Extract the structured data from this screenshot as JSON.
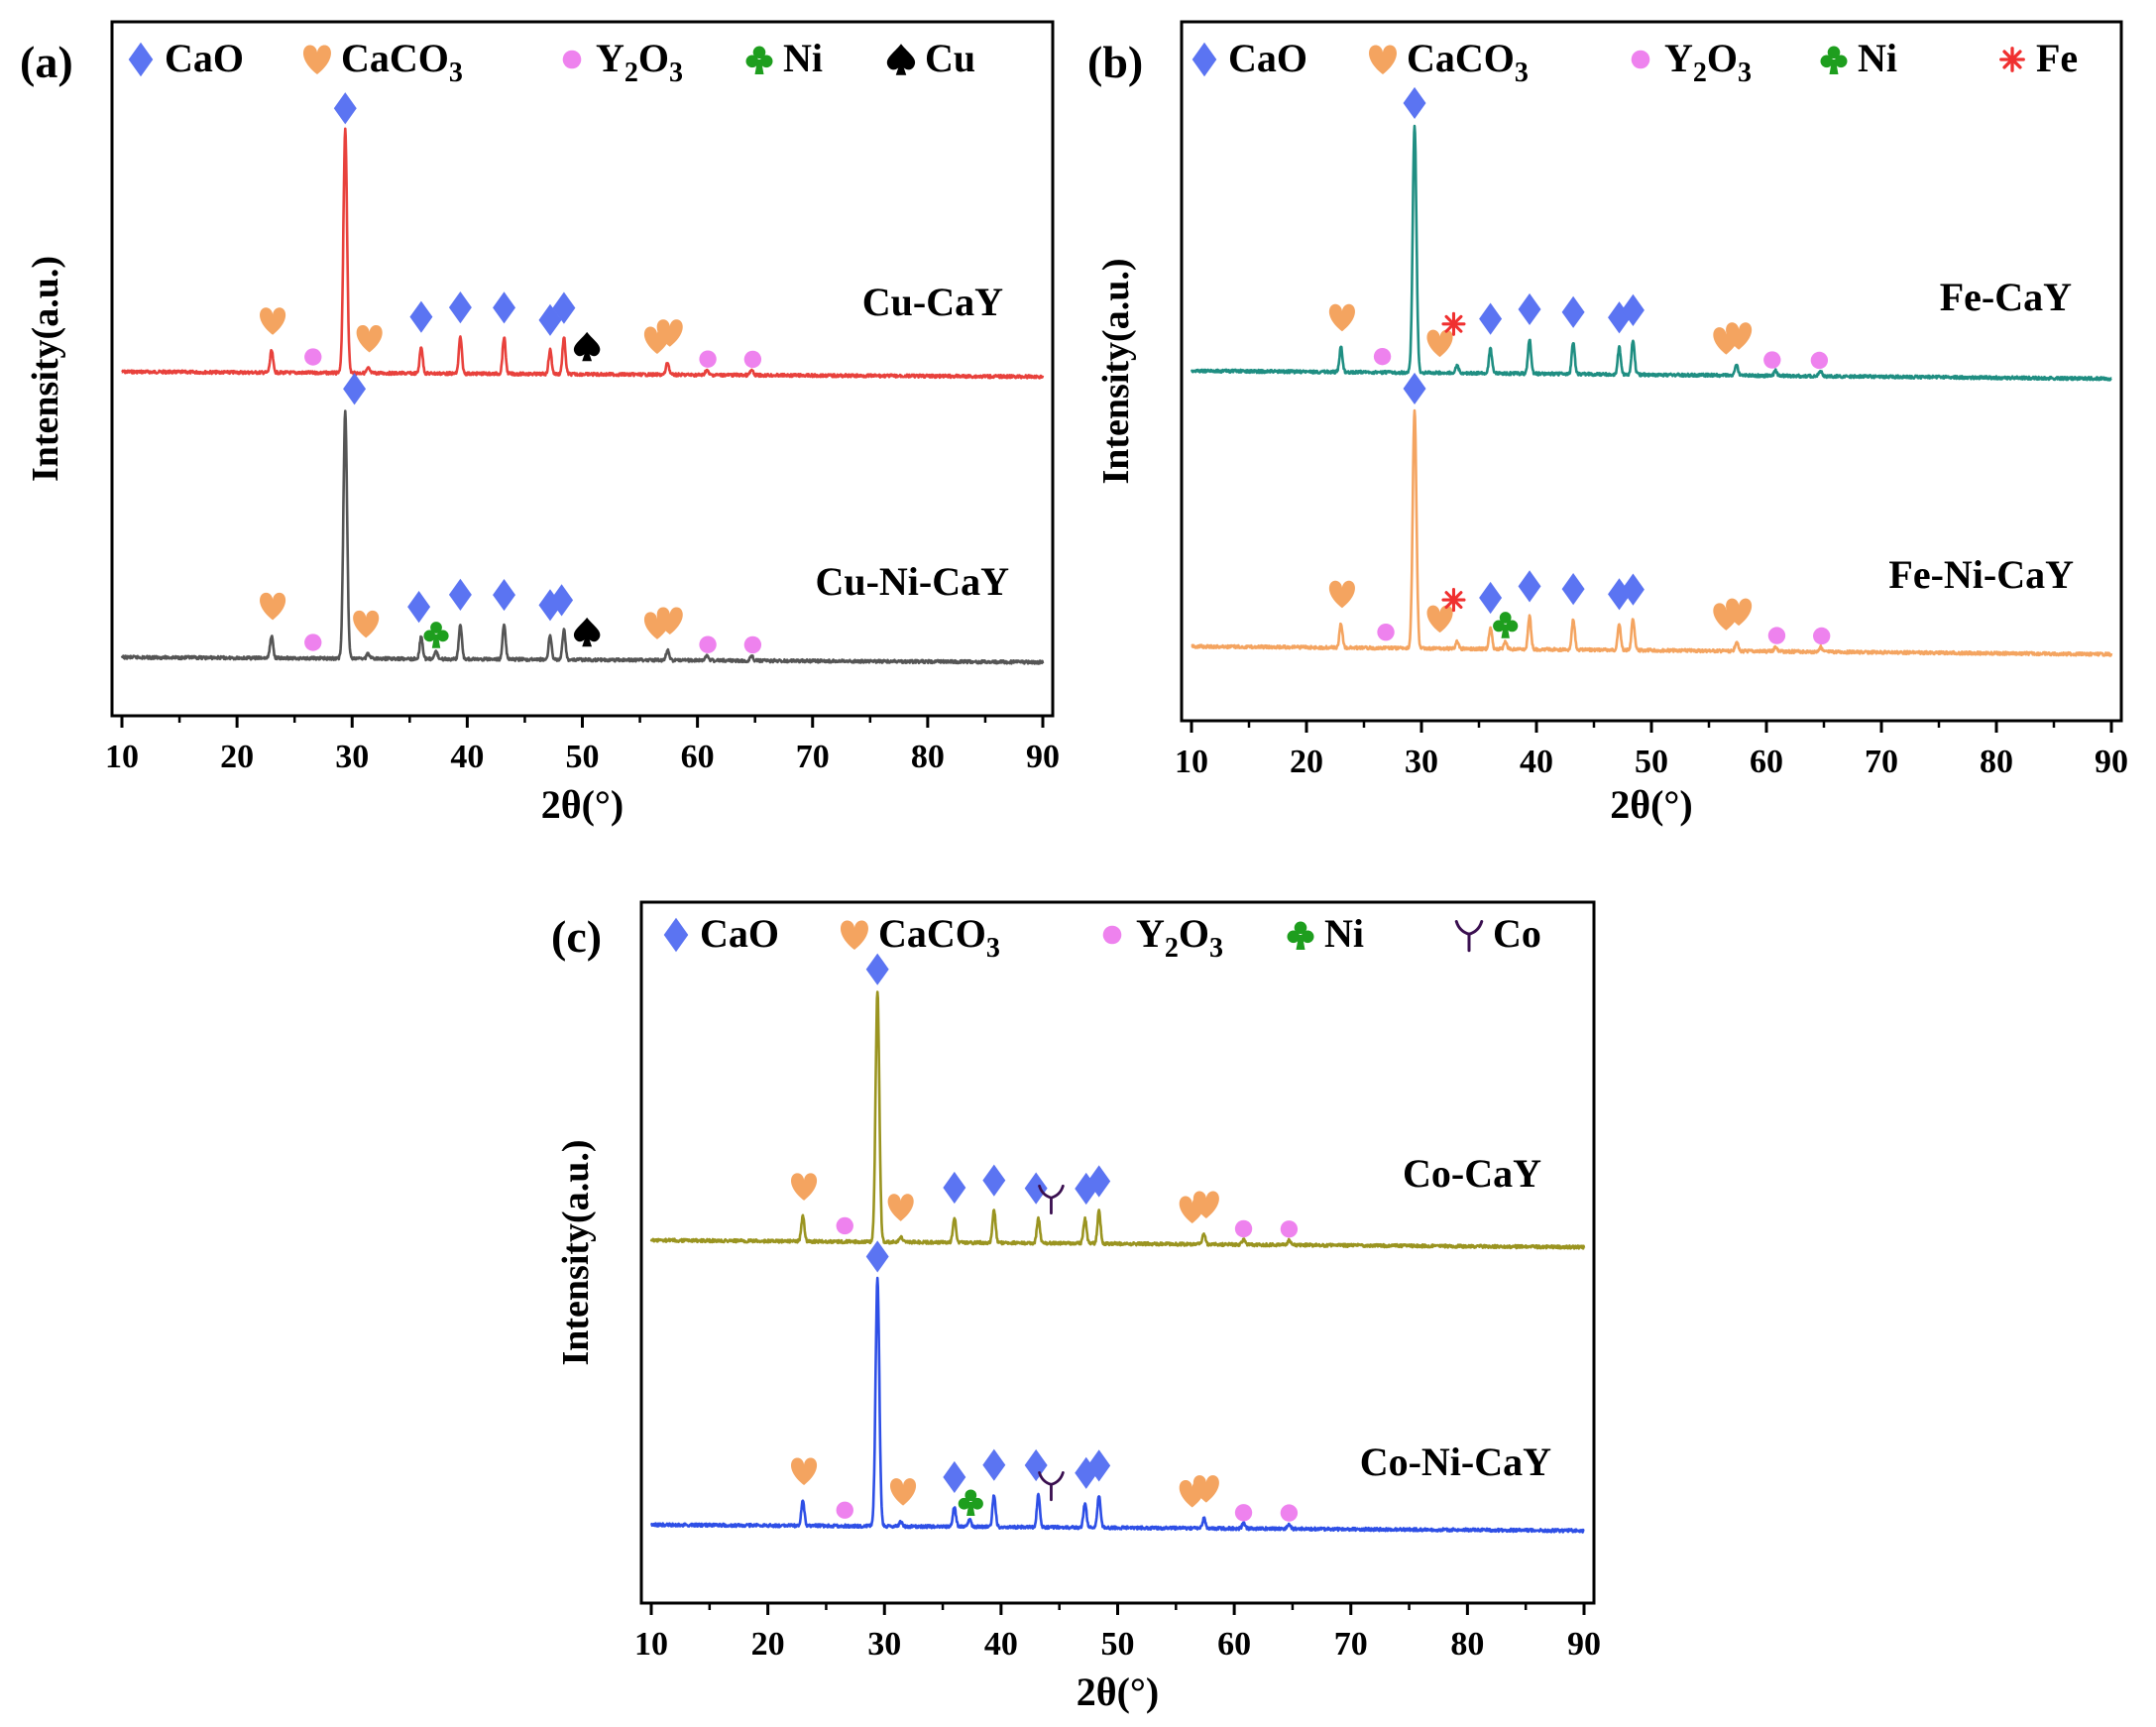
{
  "marker_legend": {
    "CaO": {
      "symbol": "diamond",
      "color": "#5B74F2"
    },
    "CaCO3": {
      "symbol": "heart",
      "color": "#F4A460"
    },
    "Y2O3": {
      "symbol": "dot",
      "color": "#EE82EE"
    },
    "Ni": {
      "symbol": "club",
      "color": "#1E9E1E"
    },
    "Cu": {
      "symbol": "spade",
      "color": "#000000"
    },
    "Fe": {
      "symbol": "asterisk",
      "color": "#F03030"
    },
    "Co": {
      "symbol": "gamma",
      "color": "#3A0F50"
    }
  },
  "chart_data": [
    {
      "type": "line",
      "panel_label": "(a)",
      "xlabel": "2θ(°)",
      "ylabel": "Intensity(a.u.)",
      "xlim": [
        10,
        90
      ],
      "xticks": [
        10,
        20,
        30,
        40,
        50,
        60,
        70,
        80,
        90
      ],
      "xtick_labels": [
        "10",
        "20",
        "30",
        "40",
        "50",
        "60",
        "70",
        "80",
        "90"
      ],
      "legend": [
        {
          "text": "CaO",
          "sub": "",
          "marker": "CaO"
        },
        {
          "text": "CaCO",
          "sub": "3",
          "marker": "CaCO3"
        },
        {
          "text": "Y",
          "sub": "2",
          "text2": "O",
          "sub2": "3",
          "marker": "Y2O3"
        },
        {
          "text": "Ni",
          "sub": "",
          "marker": "Ni"
        },
        {
          "text": "Cu",
          "sub": "",
          "marker": "Cu"
        }
      ],
      "series": [
        {
          "name": "Cu-CaY",
          "color": "#E8413C",
          "peaks": [
            [
              23.0,
              0.09
            ],
            [
              29.4,
              1.0
            ],
            [
              31.4,
              0.02
            ],
            [
              36.0,
              0.11
            ],
            [
              39.4,
              0.15
            ],
            [
              43.2,
              0.15
            ],
            [
              47.2,
              0.1
            ],
            [
              48.4,
              0.15
            ],
            [
              57.4,
              0.05
            ],
            [
              60.8,
              0.02
            ],
            [
              64.7,
              0.02
            ]
          ],
          "markers": [
            {
              "type": "CaCO3",
              "x": 23.1,
              "peak": 0.09
            },
            {
              "type": "Y2O3",
              "x": 26.6,
              "peak": 0.0
            },
            {
              "type": "CaO",
              "x": 29.4,
              "peak": 1.0
            },
            {
              "type": "CaCO3",
              "x": 31.5,
              "peak": 0.02
            },
            {
              "type": "CaO",
              "x": 36.0,
              "peak": 0.11
            },
            {
              "type": "CaO",
              "x": 39.4,
              "peak": 0.15
            },
            {
              "type": "CaO",
              "x": 43.2,
              "peak": 0.15
            },
            {
              "type": "CaO",
              "x": 47.2,
              "peak": 0.1
            },
            {
              "type": "CaO",
              "x": 48.4,
              "peak": 0.15
            },
            {
              "type": "Cu",
              "x": 50.4,
              "peak": 0.0
            },
            {
              "type": "CaCO3",
              "x": 56.5,
              "peak": 0.02
            },
            {
              "type": "CaCO3",
              "x": 57.6,
              "peak": 0.05
            },
            {
              "type": "Y2O3",
              "x": 60.9,
              "peak": 0.02
            },
            {
              "type": "Y2O3",
              "x": 64.8,
              "peak": 0.02
            }
          ]
        },
        {
          "name": "Cu-Ni-CaY",
          "color": "#555555",
          "peaks": [
            [
              23.0,
              0.09
            ],
            [
              29.4,
              1.0
            ],
            [
              31.4,
              0.02
            ],
            [
              36.0,
              0.09
            ],
            [
              37.3,
              0.03
            ],
            [
              39.4,
              0.14
            ],
            [
              43.2,
              0.14
            ],
            [
              47.2,
              0.1
            ],
            [
              48.4,
              0.12
            ],
            [
              57.4,
              0.04
            ],
            [
              60.8,
              0.02
            ],
            [
              64.7,
              0.02
            ]
          ],
          "markers": [
            {
              "type": "CaCO3",
              "x": 23.1,
              "peak": 0.09
            },
            {
              "type": "Y2O3",
              "x": 26.6,
              "peak": 0.0
            },
            {
              "type": "CaO",
              "x": 30.2,
              "peak": 1.0
            },
            {
              "type": "CaCO3",
              "x": 31.2,
              "peak": 0.02
            },
            {
              "type": "CaO",
              "x": 35.8,
              "peak": 0.09
            },
            {
              "type": "Ni",
              "x": 37.3,
              "peak": 0.03
            },
            {
              "type": "CaO",
              "x": 39.4,
              "peak": 0.14
            },
            {
              "type": "CaO",
              "x": 43.2,
              "peak": 0.14
            },
            {
              "type": "CaO",
              "x": 47.2,
              "peak": 0.1
            },
            {
              "type": "CaO",
              "x": 48.2,
              "peak": 0.12
            },
            {
              "type": "Cu",
              "x": 50.4,
              "peak": 0.0
            },
            {
              "type": "CaCO3",
              "x": 56.5,
              "peak": 0.02
            },
            {
              "type": "CaCO3",
              "x": 57.6,
              "peak": 0.04
            },
            {
              "type": "Y2O3",
              "x": 60.9,
              "peak": 0.02
            },
            {
              "type": "Y2O3",
              "x": 64.8,
              "peak": 0.02
            }
          ]
        }
      ]
    },
    {
      "type": "line",
      "panel_label": "(b)",
      "xlabel": "2θ(°)",
      "ylabel": "Intensity(a.u.)",
      "xlim": [
        10,
        90
      ],
      "xticks": [
        10,
        20,
        30,
        40,
        50,
        60,
        70,
        80,
        90
      ],
      "xtick_labels": [
        "10",
        "20",
        "30",
        "40",
        "50",
        "60",
        "70",
        "80",
        "90"
      ],
      "legend": [
        {
          "text": "CaO",
          "sub": "",
          "marker": "CaO"
        },
        {
          "text": "CaCO",
          "sub": "3",
          "marker": "CaCO3"
        },
        {
          "text": "Y",
          "sub": "2",
          "text2": "O",
          "sub2": "3",
          "marker": "Y2O3"
        },
        {
          "text": "Ni",
          "sub": "",
          "marker": "Ni"
        },
        {
          "text": "Fe",
          "sub": "",
          "marker": "Fe"
        }
      ],
      "series": [
        {
          "name": "Fe-CaY",
          "color": "#1F8E82",
          "peaks": [
            [
              23.0,
              0.1
            ],
            [
              29.4,
              1.0
            ],
            [
              33.1,
              0.03
            ],
            [
              36.0,
              0.1
            ],
            [
              39.4,
              0.14
            ],
            [
              43.2,
              0.13
            ],
            [
              47.2,
              0.11
            ],
            [
              48.4,
              0.14
            ],
            [
              57.4,
              0.04
            ],
            [
              60.8,
              0.02
            ],
            [
              64.7,
              0.02
            ]
          ],
          "markers": [
            {
              "type": "CaCO3",
              "x": 23.1,
              "peak": 0.1
            },
            {
              "type": "Y2O3",
              "x": 26.6,
              "peak": 0.0
            },
            {
              "type": "CaO",
              "x": 29.4,
              "peak": 1.0
            },
            {
              "type": "CaCO3",
              "x": 31.6,
              "peak": 0.0
            },
            {
              "type": "Fe",
              "x": 32.8,
              "peak": 0.03
            },
            {
              "type": "CaO",
              "x": 36.0,
              "peak": 0.1
            },
            {
              "type": "CaO",
              "x": 39.4,
              "peak": 0.14
            },
            {
              "type": "CaO",
              "x": 43.2,
              "peak": 0.13
            },
            {
              "type": "CaO",
              "x": 47.2,
              "peak": 0.11
            },
            {
              "type": "CaO",
              "x": 48.4,
              "peak": 0.14
            },
            {
              "type": "CaCO3",
              "x": 56.5,
              "peak": 0.02
            },
            {
              "type": "CaCO3",
              "x": 57.6,
              "peak": 0.04
            },
            {
              "type": "Y2O3",
              "x": 60.5,
              "peak": 0.02
            },
            {
              "type": "Y2O3",
              "x": 64.6,
              "peak": 0.02
            }
          ]
        },
        {
          "name": "Fe-Ni-CaY",
          "color": "#F4A460",
          "peaks": [
            [
              23.0,
              0.1
            ],
            [
              29.4,
              1.0
            ],
            [
              33.1,
              0.03
            ],
            [
              36.0,
              0.09
            ],
            [
              37.3,
              0.03
            ],
            [
              39.4,
              0.14
            ],
            [
              43.2,
              0.13
            ],
            [
              47.2,
              0.11
            ],
            [
              48.4,
              0.13
            ],
            [
              57.4,
              0.04
            ],
            [
              60.8,
              0.02
            ],
            [
              64.7,
              0.02
            ]
          ],
          "markers": [
            {
              "type": "CaCO3",
              "x": 23.1,
              "peak": 0.1
            },
            {
              "type": "Y2O3",
              "x": 26.9,
              "peak": 0.0
            },
            {
              "type": "CaO",
              "x": 29.4,
              "peak": 1.0
            },
            {
              "type": "CaCO3",
              "x": 31.6,
              "peak": 0.0
            },
            {
              "type": "Fe",
              "x": 32.8,
              "peak": 0.03
            },
            {
              "type": "CaO",
              "x": 36.0,
              "peak": 0.09
            },
            {
              "type": "Ni",
              "x": 37.3,
              "peak": 0.03
            },
            {
              "type": "CaO",
              "x": 39.4,
              "peak": 0.14
            },
            {
              "type": "CaO",
              "x": 43.2,
              "peak": 0.13
            },
            {
              "type": "CaO",
              "x": 47.2,
              "peak": 0.11
            },
            {
              "type": "CaO",
              "x": 48.4,
              "peak": 0.13
            },
            {
              "type": "CaCO3",
              "x": 56.5,
              "peak": 0.02
            },
            {
              "type": "CaCO3",
              "x": 57.6,
              "peak": 0.04
            },
            {
              "type": "Y2O3",
              "x": 60.9,
              "peak": 0.02
            },
            {
              "type": "Y2O3",
              "x": 64.8,
              "peak": 0.02
            }
          ]
        }
      ]
    },
    {
      "type": "line",
      "panel_label": "(c)",
      "xlabel": "2θ(°)",
      "ylabel": "Intensity(a.u.)",
      "xlim": [
        10,
        90
      ],
      "xticks": [
        10,
        20,
        30,
        40,
        50,
        60,
        70,
        80,
        90
      ],
      "xtick_labels": [
        "10",
        "20",
        "30",
        "40",
        "50",
        "60",
        "70",
        "80",
        "90"
      ],
      "legend": [
        {
          "text": "CaO",
          "sub": "",
          "marker": "CaO"
        },
        {
          "text": "CaCO",
          "sub": "3",
          "marker": "CaCO3"
        },
        {
          "text": "Y",
          "sub": "2",
          "text2": "O",
          "sub2": "3",
          "marker": "Y2O3"
        },
        {
          "text": "Ni",
          "sub": "",
          "marker": "Ni"
        },
        {
          "text": "Co",
          "sub": "",
          "marker": "Co"
        }
      ],
      "series": [
        {
          "name": "Co-CaY",
          "color": "#9A9420",
          "peaks": [
            [
              23.0,
              0.1
            ],
            [
              29.4,
              1.0
            ],
            [
              31.4,
              0.02
            ],
            [
              36.0,
              0.1
            ],
            [
              39.4,
              0.13
            ],
            [
              43.2,
              0.1
            ],
            [
              47.2,
              0.1
            ],
            [
              48.4,
              0.13
            ],
            [
              57.4,
              0.04
            ],
            [
              60.8,
              0.02
            ],
            [
              64.7,
              0.02
            ]
          ],
          "markers": [
            {
              "type": "CaCO3",
              "x": 23.1,
              "peak": 0.1
            },
            {
              "type": "Y2O3",
              "x": 26.6,
              "peak": 0.0
            },
            {
              "type": "CaO",
              "x": 29.4,
              "peak": 1.0
            },
            {
              "type": "CaCO3",
              "x": 31.4,
              "peak": 0.02
            },
            {
              "type": "CaO",
              "x": 36.0,
              "peak": 0.1
            },
            {
              "type": "CaO",
              "x": 39.4,
              "peak": 0.13
            },
            {
              "type": "CaO",
              "x": 43.0,
              "peak": 0.1
            },
            {
              "type": "Co",
              "x": 44.3,
              "peak": 0.04
            },
            {
              "type": "CaO",
              "x": 47.3,
              "peak": 0.1
            },
            {
              "type": "CaO",
              "x": 48.4,
              "peak": 0.13
            },
            {
              "type": "CaCO3",
              "x": 56.4,
              "peak": 0.02
            },
            {
              "type": "CaCO3",
              "x": 57.6,
              "peak": 0.04
            },
            {
              "type": "Y2O3",
              "x": 60.8,
              "peak": 0.02
            },
            {
              "type": "Y2O3",
              "x": 64.7,
              "peak": 0.02
            }
          ]
        },
        {
          "name": "Co-Ni-CaY",
          "color": "#2E4FE6",
          "peaks": [
            [
              23.0,
              0.1
            ],
            [
              29.4,
              1.0
            ],
            [
              31.4,
              0.02
            ],
            [
              36.0,
              0.08
            ],
            [
              37.3,
              0.03
            ],
            [
              39.4,
              0.13
            ],
            [
              43.2,
              0.13
            ],
            [
              47.2,
              0.1
            ],
            [
              48.4,
              0.13
            ],
            [
              57.4,
              0.04
            ],
            [
              60.8,
              0.02
            ],
            [
              64.7,
              0.02
            ]
          ],
          "markers": [
            {
              "type": "CaCO3",
              "x": 23.1,
              "peak": 0.1
            },
            {
              "type": "Y2O3",
              "x": 26.6,
              "peak": 0.0
            },
            {
              "type": "CaO",
              "x": 29.4,
              "peak": 1.0
            },
            {
              "type": "CaCO3",
              "x": 31.6,
              "peak": 0.02
            },
            {
              "type": "CaO",
              "x": 36.0,
              "peak": 0.08
            },
            {
              "type": "Ni",
              "x": 37.4,
              "peak": 0.03
            },
            {
              "type": "CaO",
              "x": 39.4,
              "peak": 0.13
            },
            {
              "type": "CaO",
              "x": 43.0,
              "peak": 0.13
            },
            {
              "type": "Co",
              "x": 44.3,
              "peak": 0.03
            },
            {
              "type": "CaO",
              "x": 47.3,
              "peak": 0.1
            },
            {
              "type": "CaO",
              "x": 48.4,
              "peak": 0.13
            },
            {
              "type": "CaCO3",
              "x": 56.4,
              "peak": 0.02
            },
            {
              "type": "CaCO3",
              "x": 57.6,
              "peak": 0.04
            },
            {
              "type": "Y2O3",
              "x": 60.8,
              "peak": 0.02
            },
            {
              "type": "Y2O3",
              "x": 64.7,
              "peak": 0.02
            }
          ]
        }
      ]
    }
  ]
}
